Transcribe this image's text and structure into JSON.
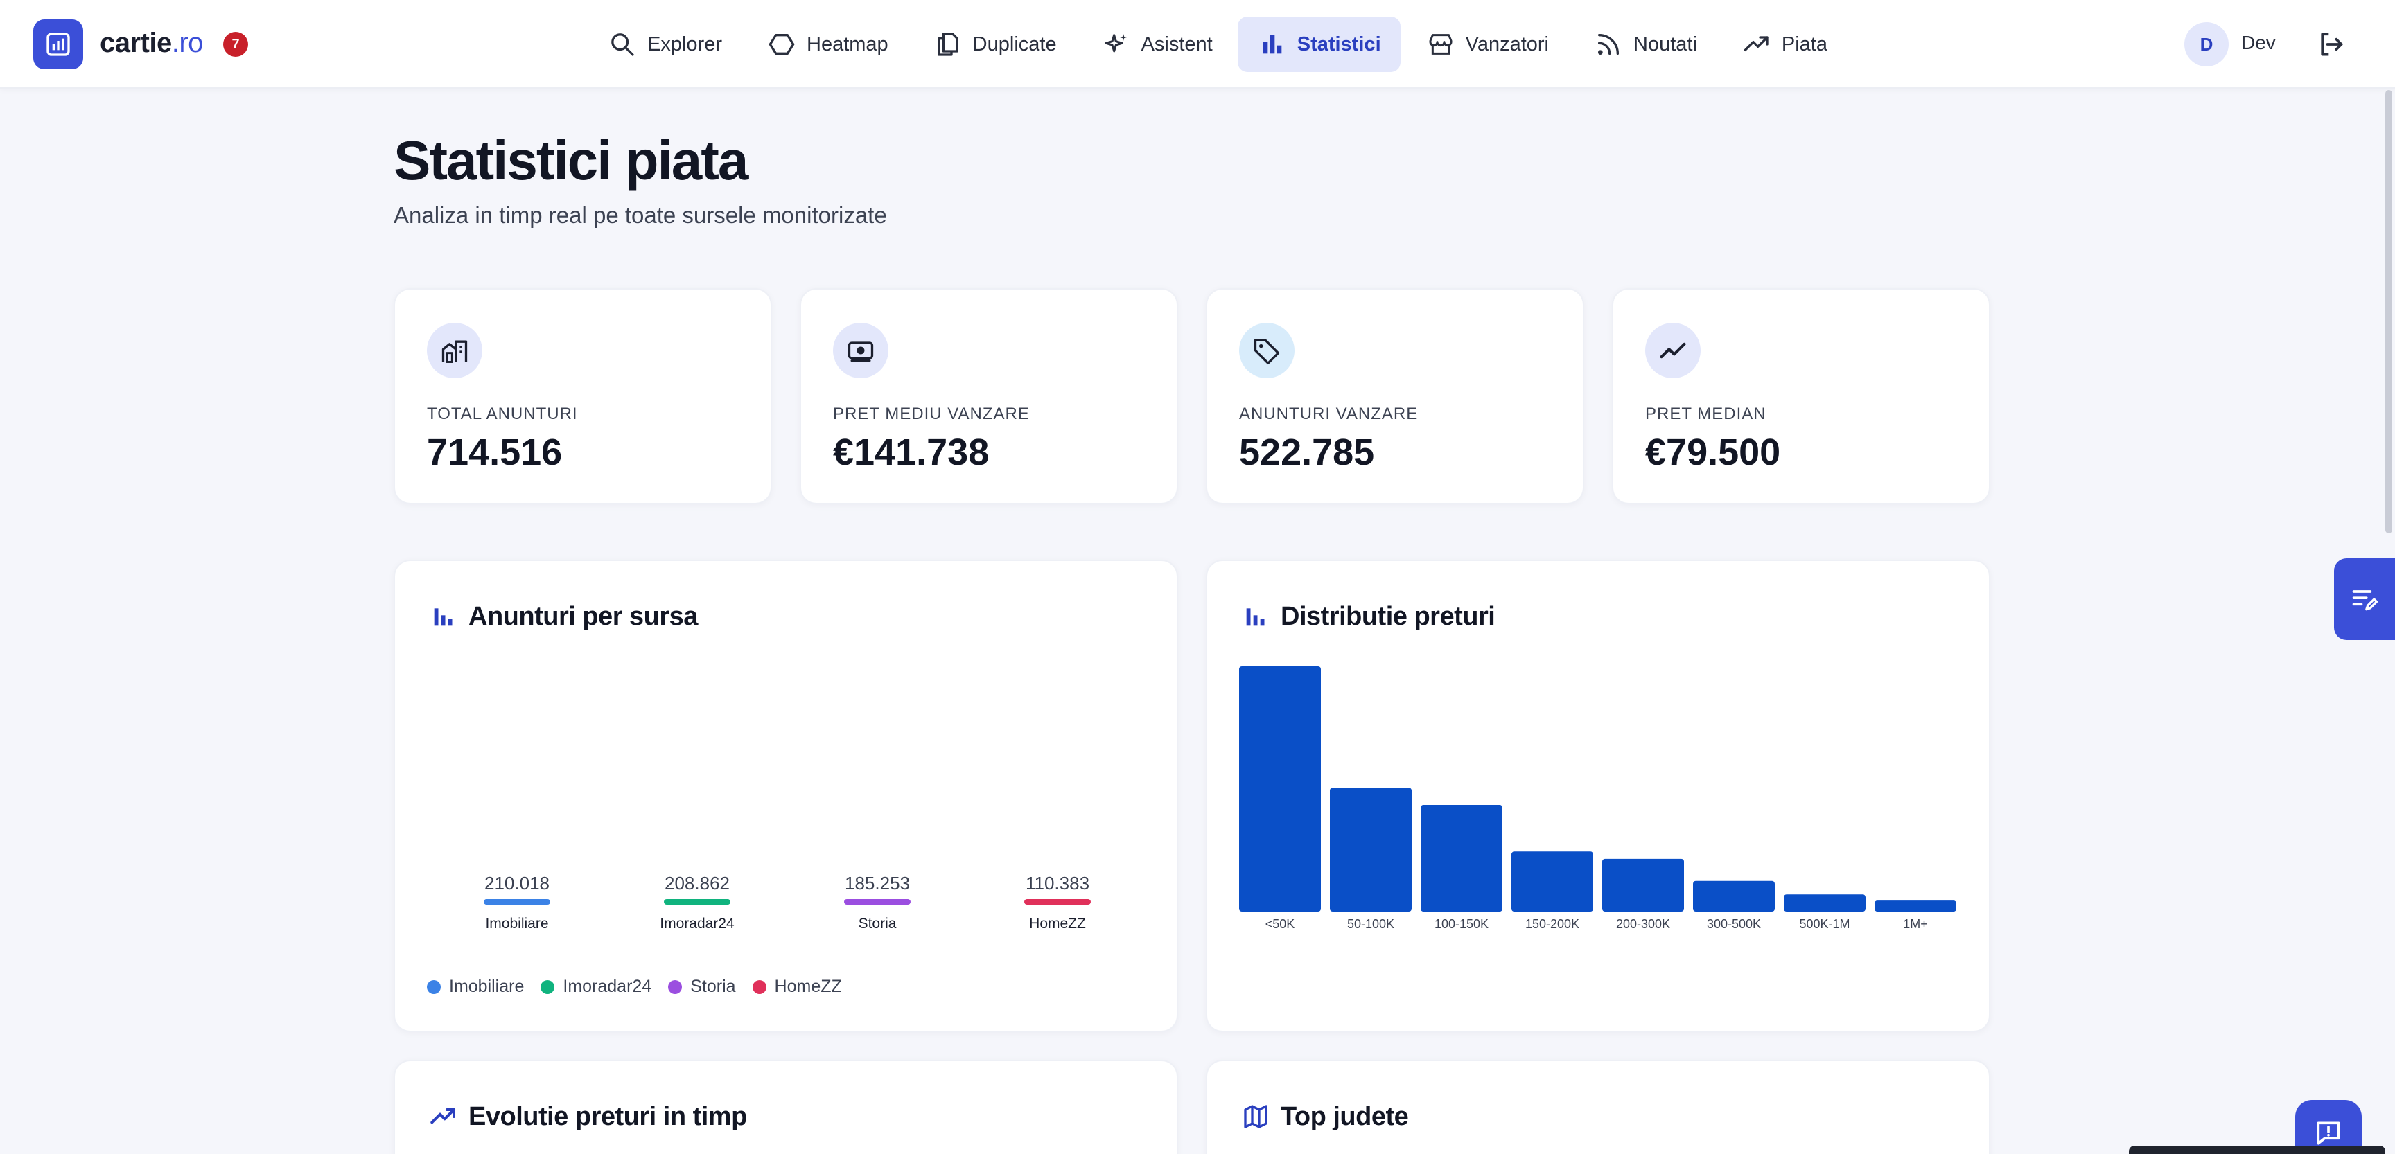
{
  "app": {
    "brand_name": "cartie",
    "brand_tld": ".ro",
    "notification_count": "7",
    "accent_color": "#3b4fd8"
  },
  "nav": {
    "items": [
      {
        "label": "Explorer",
        "icon": "search-icon"
      },
      {
        "label": "Heatmap",
        "icon": "hexagon-icon"
      },
      {
        "label": "Duplicate",
        "icon": "copy-icon"
      },
      {
        "label": "Asistent",
        "icon": "sparkles-icon"
      },
      {
        "label": "Statistici",
        "icon": "bar-chart-icon",
        "active": true
      },
      {
        "label": "Vanzatori",
        "icon": "store-icon"
      },
      {
        "label": "Noutati",
        "icon": "rss-icon"
      },
      {
        "label": "Piata",
        "icon": "trending-up-icon"
      }
    ]
  },
  "user": {
    "initial": "D",
    "name": "Dev"
  },
  "page": {
    "title": "Statistici piata",
    "subtitle": "Analiza in timp real pe toate sursele monitorizate"
  },
  "stats": [
    {
      "label": "TOTAL ANUNTURI",
      "value": "714.516",
      "icon": "buildings-icon"
    },
    {
      "label": "PRET MEDIU VANZARE",
      "value": "€141.738",
      "icon": "money-icon"
    },
    {
      "label": "ANUNTURI VANZARE",
      "value": "522.785",
      "icon": "tag-icon"
    },
    {
      "label": "PRET MEDIAN",
      "value": "€79.500",
      "icon": "trend-icon"
    }
  ],
  "panels": {
    "sources_title": "Anunturi per sursa",
    "distribution_title": "Distributie preturi",
    "evolution_title": "Evolutie preturi in timp",
    "counties_title": "Top judete"
  },
  "chart_data": [
    {
      "type": "bar",
      "title": "Anunturi per sursa",
      "categories": [
        "Imobiliare",
        "Imoradar24",
        "Storia",
        "HomeZZ"
      ],
      "values": [
        210018,
        208862,
        185253,
        110383
      ],
      "value_labels": [
        "210.018",
        "208.862",
        "185.253",
        "110.383"
      ],
      "colors": [
        "#3b82e6",
        "#10b37e",
        "#9b4ee0",
        "#e0305a"
      ],
      "legend": "bottom-left"
    },
    {
      "type": "bar",
      "title": "Distributie preturi",
      "categories": [
        "<50K",
        "50-100K",
        "100-150K",
        "150-200K",
        "200-300K",
        "300-500K",
        "500K-1M",
        "1M+"
      ],
      "values": [
        1.0,
        0.505,
        0.435,
        0.245,
        0.215,
        0.125,
        0.07,
        0.045
      ],
      "color": "#0a4fc7",
      "grid": false
    }
  ]
}
